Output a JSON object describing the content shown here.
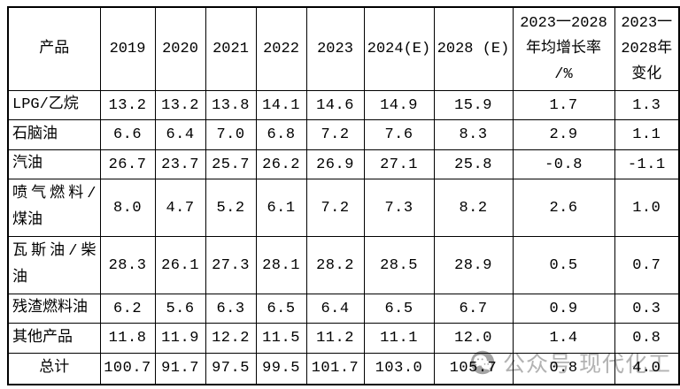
{
  "chart_data": {
    "type": "table",
    "columns": [
      "产品",
      "2019",
      "2020",
      "2021",
      "2022",
      "2023",
      "2024(E)",
      "2028 (E)",
      "2023一2028\n年均增长率\n/%",
      "2023一\n2028年\n变化"
    ],
    "rows": [
      {
        "label": "LPG/乙烷",
        "values": [
          "13.2",
          "13.2",
          "13.8",
          "14.1",
          "14.6",
          "14.9",
          "15.9",
          "1.7",
          "1.3"
        ]
      },
      {
        "label": "石脑油",
        "values": [
          "6.6",
          "6.4",
          "7.0",
          "6.8",
          "7.2",
          "7.6",
          "8.3",
          "2.9",
          "1.1"
        ]
      },
      {
        "label": "汽油",
        "values": [
          "26.7",
          "23.7",
          "25.7",
          "26.2",
          "26.9",
          "27.1",
          "25.8",
          "-0.8",
          "-1.1"
        ]
      },
      {
        "label": "喷气燃料/\n煤油",
        "values": [
          "8.0",
          "4.7",
          "5.2",
          "6.1",
          "7.2",
          "7.3",
          "8.2",
          "2.6",
          "1.0"
        ]
      },
      {
        "label": "瓦斯油/柴\n油",
        "values": [
          "28.3",
          "26.1",
          "27.3",
          "28.1",
          "28.2",
          "28.5",
          "28.9",
          "0.5",
          "0.7"
        ]
      },
      {
        "label": "残渣燃料油",
        "values": [
          "6.2",
          "5.6",
          "6.3",
          "6.5",
          "6.4",
          "6.5",
          "6.7",
          "0.9",
          "0.3"
        ]
      },
      {
        "label": "其他产品",
        "values": [
          "11.8",
          "11.9",
          "12.2",
          "11.5",
          "11.2",
          "11.1",
          "12.0",
          "1.4",
          "0.8"
        ]
      },
      {
        "label": "总计",
        "values": [
          "100.7",
          "91.7",
          "97.5",
          "99.5",
          "101.7",
          "103.0",
          "105.7",
          "0.8",
          "4.0"
        ],
        "is_total": true
      }
    ]
  },
  "watermark": {
    "icon": "wechat-icon",
    "text": "公众号 现代化工",
    "color": "#b2b2b2",
    "icon_color": "#a3a3a3"
  },
  "colors": {
    "border": "#000000",
    "text": "#000000",
    "background": "#ffffff"
  }
}
